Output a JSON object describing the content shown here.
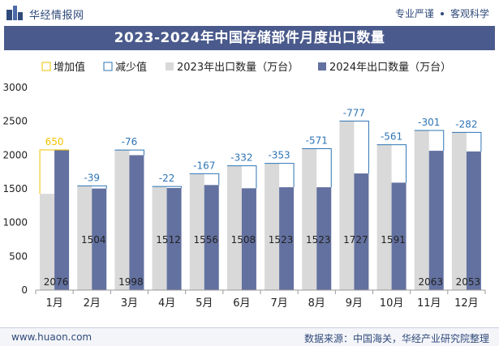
{
  "header": {
    "brand": "华经情报网",
    "tag1": "专业严谨",
    "tag2": "客观科学",
    "title": "2023-2024年中国存储部件月度出口数量"
  },
  "footer": {
    "url": "www.huaon.com",
    "source": "数据来源：中国海关，华经产业研究院整理"
  },
  "colors": {
    "bar2023": "#d9d9d9",
    "bar2024": "#6371a0",
    "increase": "#f2c200",
    "decrease": "#2e74b5",
    "title_bg": "#4a5a8c"
  },
  "chart_data": {
    "type": "bar",
    "categories": [
      "1月",
      "2月",
      "3月",
      "4月",
      "5月",
      "6月",
      "7月",
      "8月",
      "9月",
      "10月",
      "11月",
      "12月"
    ],
    "series": [
      {
        "name": "2023年出口数量（万台）",
        "values": [
          1426,
          1543,
          2074,
          1534,
          1723,
          1840,
          1876,
          2094,
          2504,
          2152,
          2364,
          2335
        ]
      },
      {
        "name": "2024年出口数量（万台）",
        "values": [
          2076,
          1504,
          1998,
          1512,
          1556,
          1508,
          1523,
          1523,
          1727,
          1591,
          2063,
          2053
        ]
      }
    ],
    "series2024_labels": [
      "2076",
      "1504",
      "1998",
      "1512",
      "1556",
      "1508",
      "1523",
      "1523",
      "1727",
      "1591",
      "2063",
      "2053"
    ],
    "changes": [
      650,
      -39,
      -76,
      -22,
      -167,
      -332,
      -353,
      -571,
      -777,
      -561,
      -301,
      -282
    ],
    "change_labels": [
      "650",
      "-39",
      "-76",
      "-22",
      "-167",
      "-332",
      "-353",
      "-571",
      "-777",
      "-561",
      "-301",
      "-282"
    ],
    "legend": [
      "增加值",
      "减少值",
      "2023年出口数量（万台）",
      "2024年出口数量（万台）"
    ],
    "legend_position": "top",
    "y_ticks": [
      "0",
      "500",
      "1000",
      "1500",
      "2000",
      "2500",
      "3000"
    ],
    "ylim": [
      0,
      3000
    ],
    "grid": false
  }
}
